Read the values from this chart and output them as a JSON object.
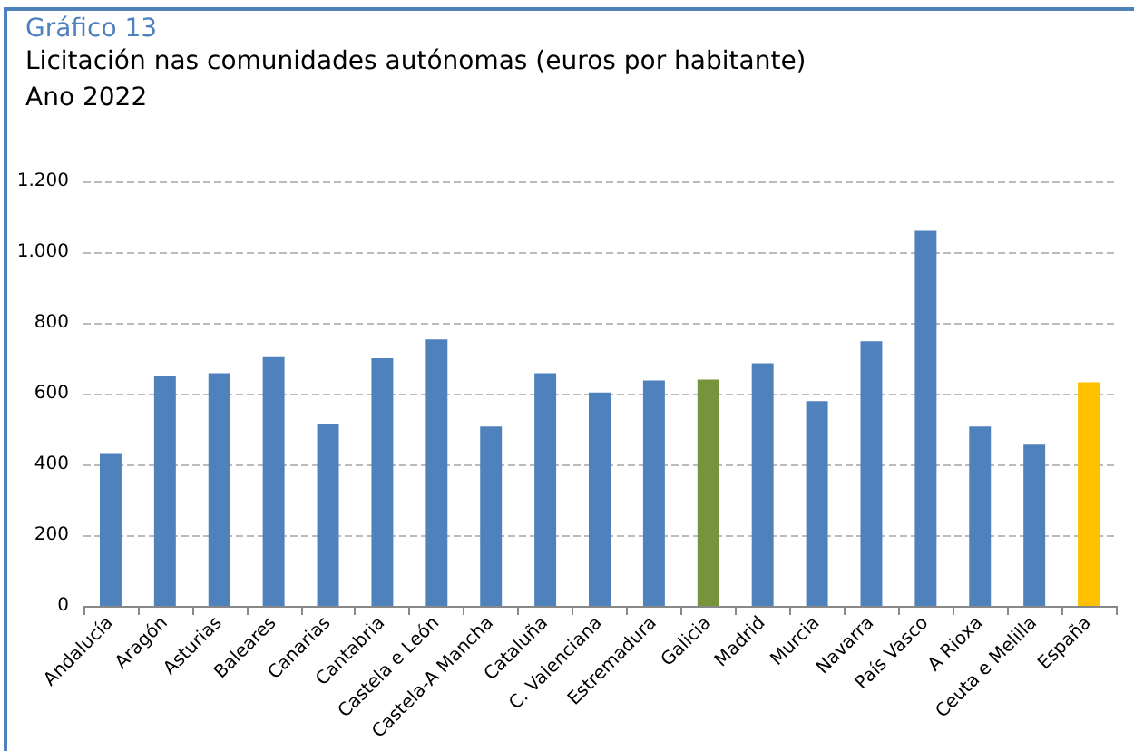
{
  "chart_data": {
    "type": "bar",
    "title": "Licitación nas comunidades autónomas (euros por habitante)",
    "subtitle": "Ano 2022",
    "annotations": [
      "Gráfico 13"
    ],
    "categories": [
      "Andalucía",
      "Aragón",
      "Asturias",
      "Baleares",
      "Canarias",
      "Cantabria",
      "Castela e León",
      "Castela-A Mancha",
      "Cataluña",
      "C. Valenciana",
      "Estremadura",
      "Galicia",
      "Madrid",
      "Murcia",
      "Navarra",
      "País Vasco",
      "A Rioxa",
      "Ceuta e Melilla",
      "España"
    ],
    "values": [
      432,
      649,
      658,
      703,
      514,
      700,
      753,
      507,
      658,
      603,
      637,
      640,
      686,
      579,
      748,
      1060,
      507,
      456,
      632
    ],
    "colors": [
      "#4f81bd",
      "#4f81bd",
      "#4f81bd",
      "#4f81bd",
      "#4f81bd",
      "#4f81bd",
      "#4f81bd",
      "#4f81bd",
      "#4f81bd",
      "#4f81bd",
      "#4f81bd",
      "#77933c",
      "#4f81bd",
      "#4f81bd",
      "#4f81bd",
      "#4f81bd",
      "#4f81bd",
      "#4f81bd",
      "#ffc000"
    ],
    "ylim": [
      0,
      1200
    ],
    "yticks": [
      0,
      200,
      400,
      600,
      800,
      {
        "value": 1000,
        "label": "1.000"
      },
      {
        "value": 1200,
        "label": "1.200"
      }
    ],
    "grid": "y"
  }
}
